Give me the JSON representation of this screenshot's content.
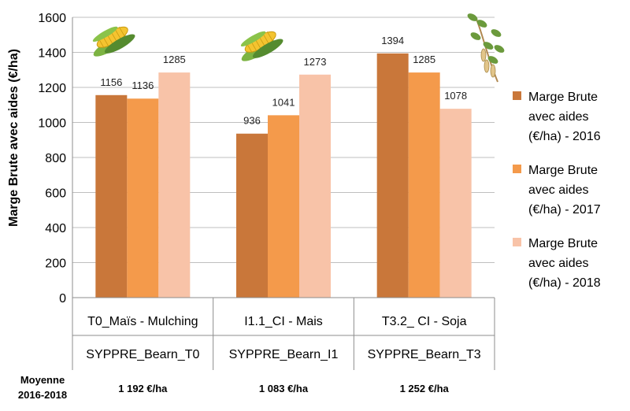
{
  "chart_data": {
    "type": "bar",
    "ylabel": "Marge Brute avec aides (€/ha)",
    "ylim": [
      0,
      1600
    ],
    "yticks": [
      0,
      200,
      400,
      600,
      800,
      1000,
      1200,
      1400,
      1600
    ],
    "categories": [
      "T0_Maïs - Mulching",
      "I1.1_CI - Mais",
      "T3.2_ CI - Soja"
    ],
    "groups": [
      "SYPPRE_Bearn_T0",
      "SYPPRE_Bearn_I1",
      "SYPPRE_Bearn_T3"
    ],
    "series": [
      {
        "name": "Marge Brute avec aides (€/ha) - 2016",
        "values": [
          1156,
          936,
          1394
        ],
        "color": "#C9773A"
      },
      {
        "name": "Marge Brute avec aides (€/ha) - 2017",
        "values": [
          1136,
          1041,
          1285
        ],
        "color": "#F49A4B"
      },
      {
        "name": "Marge Brute avec aides (€/ha) - 2018",
        "values": [
          1285,
          1273,
          1078
        ],
        "color": "#F8C3A8"
      }
    ],
    "legend": {
      "position": "right",
      "lines": [
        [
          "Marge Brute",
          "avec aides",
          "(€/ha) - 2016"
        ],
        [
          "Marge Brute",
          "avec aides",
          "(€/ha) - 2017"
        ],
        [
          "Marge Brute",
          "avec aides",
          "(€/ha) - 2018"
        ]
      ]
    },
    "grid": true,
    "icons": [
      "corn-icon",
      "corn-icon",
      "soybean-plant-icon"
    ]
  },
  "average": {
    "label_line1": "Moyenne",
    "label_line2": "2016-2018",
    "values": [
      "1 192 €/ha",
      "1 083 €/ha",
      "1 252 €/ha"
    ]
  }
}
